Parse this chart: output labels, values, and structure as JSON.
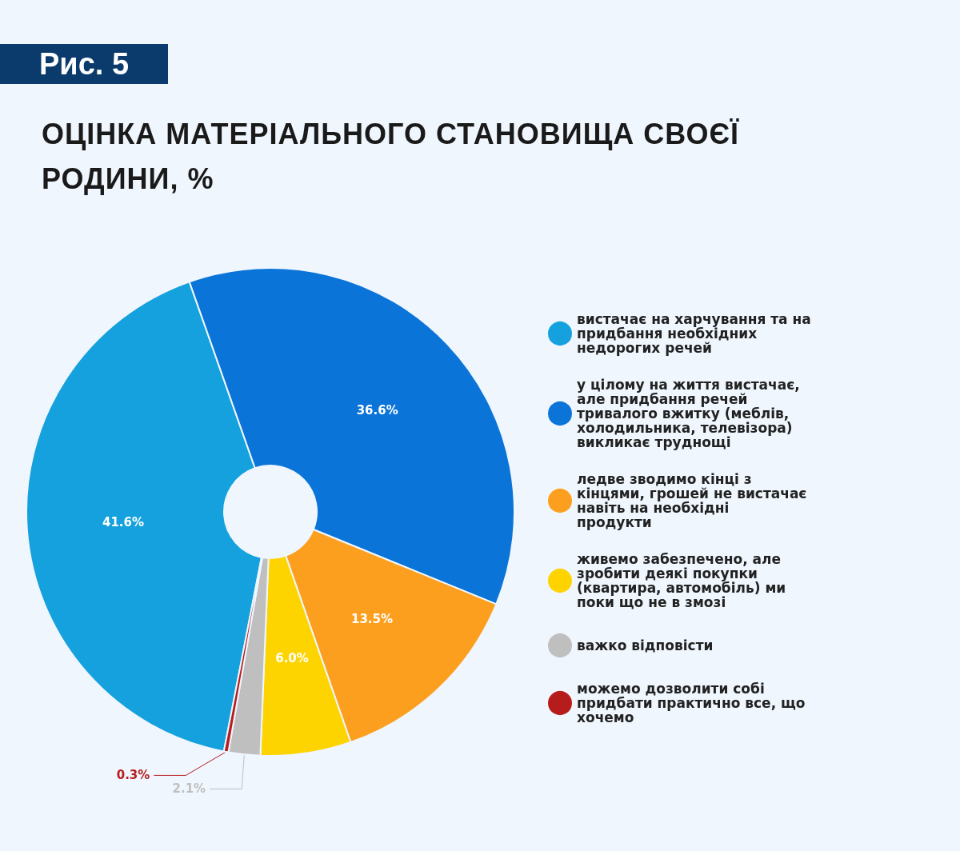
{
  "chart_data": {
    "type": "donut",
    "title": "ОЦІНКА МАТЕРІАЛЬНОГО СТАНОВИЩА СВОЄЇ РОДИНИ, %",
    "annotations": [
      "Рис. 5"
    ],
    "categories": [
      "вистачає на харчування та на придбання необхідних недорогих речей",
      "у цілому на життя вистачає, але придбання речей тривалого вжитку (меблів, холодильника, телевізора) викликає труднощі",
      "ледве зводимо кінці з кінцями, грошей не вистачає навіть на необхідні продукти",
      "живемо забезпечено, але зробити деякі покупки (квартира, автомобіль) ми поки що не в змозі",
      "важко відповісти",
      "можемо дозволити собі придбати практично все, що хочемо"
    ],
    "values": [
      41.6,
      36.6,
      13.5,
      6.0,
      2.1,
      0.3
    ],
    "colors": [
      "#14a1de",
      "#0b74d8",
      "#fd9f1e",
      "#fed400",
      "#bfbfbf",
      "#b71c1c"
    ],
    "value_labels": [
      "41.6%",
      "36.6%",
      "13.5%",
      "6.0%",
      "2.1%",
      "0.3%"
    ],
    "legend": "right"
  }
}
